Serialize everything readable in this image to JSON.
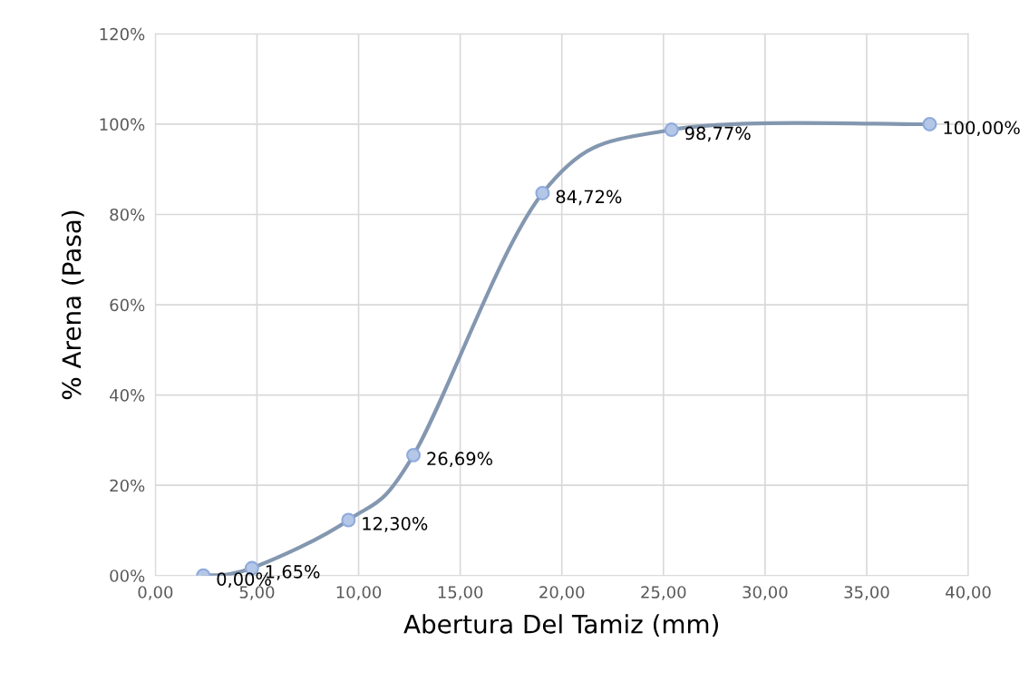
{
  "chart_data": {
    "type": "line",
    "xlabel": "Abertura Del Tamiz (mm)",
    "ylabel": "% Arena (Pasa)",
    "x": [
      2.36,
      4.75,
      9.5,
      12.7,
      19.05,
      25.4,
      38.1
    ],
    "series": [
      {
        "color": "#8497b0",
        "values": [
          0,
          1.65,
          12.3,
          26.69,
          84.72,
          98.77,
          100.0
        ],
        "value_labels": [
          "0,00%",
          "1,65%",
          "12,30%",
          "26,69%",
          "84,72%",
          "98,77%",
          "100,00%"
        ]
      }
    ],
    "xlim": [
      0,
      40
    ],
    "xticks": [
      {
        "value": 0,
        "label": "0,00"
      },
      {
        "value": 5,
        "label": "5,00"
      },
      {
        "value": 10,
        "label": "10,00"
      },
      {
        "value": 15,
        "label": "15,00"
      },
      {
        "value": 20,
        "label": "20,00"
      },
      {
        "value": 25,
        "label": "25,00"
      },
      {
        "value": 30,
        "label": "30,00"
      },
      {
        "value": 35,
        "label": "35,00"
      },
      {
        "value": 40,
        "label": "40,00"
      }
    ],
    "ylim": [
      0,
      120
    ],
    "yticks": [
      {
        "value": 0,
        "label": "00%"
      },
      {
        "value": 20,
        "label": "20%"
      },
      {
        "value": 40,
        "label": "40%"
      },
      {
        "value": 60,
        "label": "60%"
      },
      {
        "value": 80,
        "label": "80%"
      },
      {
        "value": 100,
        "label": "100%"
      },
      {
        "value": 120,
        "label": "120%"
      }
    ],
    "grid": true,
    "marker": "circle",
    "line_style": "solid",
    "legend": false
  }
}
